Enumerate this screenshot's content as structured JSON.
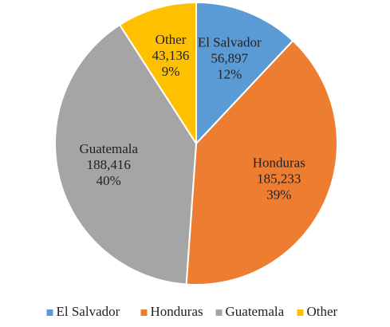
{
  "chart_data": {
    "type": "pie",
    "categories": [
      "El Salvador",
      "Honduras",
      "Guatemala",
      "Other"
    ],
    "values": [
      56897,
      185233,
      188416,
      43136
    ],
    "value_labels": [
      "56,897",
      "185,233",
      "188,416",
      "43,136"
    ],
    "percent_labels": [
      "12%",
      "39%",
      "40%",
      "9%"
    ],
    "colors": [
      "#5b9bd5",
      "#ed7d31",
      "#a5a5a5",
      "#ffc000"
    ],
    "legend": "bottom"
  }
}
